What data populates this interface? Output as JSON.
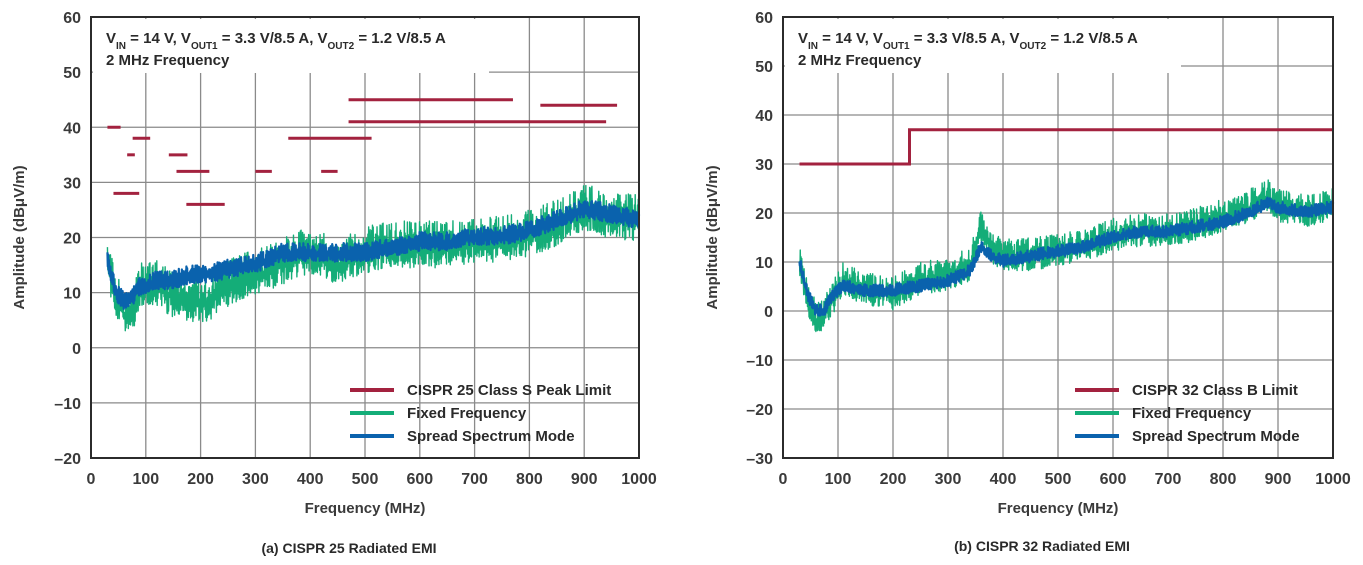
{
  "colors": {
    "limit": "#a3223f",
    "fixed": "#14ad78",
    "spread": "#0a62ad",
    "grid": "#8a8a8a",
    "frame": "#2b2b2b"
  },
  "chart_data": [
    {
      "type": "line",
      "caption": "(a) CISPR 25 Radiated EMI",
      "xlabel": "Frequency (MHz)",
      "ylabel": "Amplitude (dBμV/m)",
      "xlim": [
        0,
        1000
      ],
      "ylim": [
        -20,
        60
      ],
      "xticks": [
        0,
        100,
        200,
        300,
        400,
        500,
        600,
        700,
        800,
        900,
        1000
      ],
      "yticks": [
        -20,
        -10,
        0,
        10,
        20,
        30,
        40,
        50,
        60
      ],
      "grid": true,
      "legend_position": "bottom-right",
      "conditions": {
        "line1": [
          {
            "t": "V",
            "s": ""
          },
          {
            "t": "IN",
            "s": "sub"
          },
          {
            "t": " = 14 V, V",
            "s": ""
          },
          {
            "t": "OUT1",
            "s": "sub"
          },
          {
            "t": " = 3.3 V/8.5 A, V",
            "s": ""
          },
          {
            "t": "OUT2",
            "s": "sub"
          },
          {
            "t": " = 1.2 V/8.5 A",
            "s": ""
          }
        ],
        "line2": "2 MHz Frequency"
      },
      "series": [
        {
          "name": "CISPR 25 Class S Peak Limit",
          "kind": "limit",
          "segments": [
            [
              30,
              40,
              54,
              40
            ],
            [
              41,
              28,
              88,
              28
            ],
            [
              66,
              35,
              80,
              35
            ],
            [
              76,
              38,
              108,
              38
            ],
            [
              142,
              35,
              176,
              35
            ],
            [
              156,
              32,
              216,
              32
            ],
            [
              174,
              26,
              244,
              26
            ],
            [
              300,
              32,
              330,
              32
            ],
            [
              360,
              38,
              512,
              38
            ],
            [
              420,
              32,
              450,
              32
            ],
            [
              470,
              45,
              770,
              45
            ],
            [
              470,
              41,
              940,
              41
            ],
            [
              820,
              44,
              960,
              44
            ]
          ]
        },
        {
          "name": "Fixed Frequency",
          "kind": "noise",
          "base": [
            [
              30,
              15
            ],
            [
              45,
              9
            ],
            [
              60,
              6
            ],
            [
              75,
              6
            ],
            [
              90,
              11
            ],
            [
              120,
              11
            ],
            [
              150,
              9
            ],
            [
              180,
              8
            ],
            [
              210,
              8
            ],
            [
              250,
              11
            ],
            [
              300,
              13
            ],
            [
              350,
              15
            ],
            [
              400,
              17
            ],
            [
              450,
              15
            ],
            [
              500,
              17
            ],
            [
              550,
              18
            ],
            [
              600,
              18
            ],
            [
              650,
              18
            ],
            [
              700,
              19
            ],
            [
              750,
              19
            ],
            [
              800,
              20
            ],
            [
              850,
              22
            ],
            [
              900,
              25
            ],
            [
              950,
              23
            ],
            [
              1000,
              23
            ]
          ],
          "spread": 5
        },
        {
          "name": "Spread Spectrum Mode",
          "kind": "noise",
          "base": [
            [
              30,
              16
            ],
            [
              45,
              10
            ],
            [
              60,
              8
            ],
            [
              75,
              9
            ],
            [
              90,
              11
            ],
            [
              120,
              12
            ],
            [
              150,
              12
            ],
            [
              180,
              13
            ],
            [
              210,
              13
            ],
            [
              250,
              14
            ],
            [
              300,
              15
            ],
            [
              350,
              17
            ],
            [
              400,
              17
            ],
            [
              450,
              17
            ],
            [
              500,
              17
            ],
            [
              550,
              18
            ],
            [
              600,
              19
            ],
            [
              650,
              19
            ],
            [
              700,
              20
            ],
            [
              750,
              20
            ],
            [
              800,
              21
            ],
            [
              850,
              23
            ],
            [
              900,
              25
            ],
            [
              950,
              24
            ],
            [
              1000,
              23
            ]
          ],
          "spread": 2
        }
      ]
    },
    {
      "type": "line",
      "caption": "(b) CISPR 32 Radiated EMI",
      "xlabel": "Frequency (MHz)",
      "ylabel": "Amplitude (dBμV/m)",
      "xlim": [
        0,
        1000
      ],
      "ylim": [
        -30,
        60
      ],
      "xticks": [
        0,
        100,
        200,
        300,
        400,
        500,
        600,
        700,
        800,
        900,
        1000
      ],
      "yticks": [
        -30,
        -20,
        -10,
        0,
        10,
        20,
        30,
        40,
        50,
        60
      ],
      "grid": true,
      "legend_position": "bottom-right",
      "conditions": {
        "line1": [
          {
            "t": "V",
            "s": ""
          },
          {
            "t": "IN",
            "s": "sub"
          },
          {
            "t": " = 14 V, V",
            "s": ""
          },
          {
            "t": "OUT1",
            "s": "sub"
          },
          {
            "t": " = 3.3 V/8.5 A, V",
            "s": ""
          },
          {
            "t": "OUT2",
            "s": "sub"
          },
          {
            "t": " = 1.2 V/8.5 A",
            "s": ""
          }
        ],
        "line2": "2 MHz Frequency"
      },
      "series": [
        {
          "name": "CISPR 32 Class B Limit",
          "kind": "step",
          "points": [
            [
              30,
              30
            ],
            [
              230,
              30
            ],
            [
              230,
              37
            ],
            [
              1000,
              37
            ]
          ]
        },
        {
          "name": "Fixed Frequency",
          "kind": "noise",
          "base": [
            [
              30,
              10
            ],
            [
              45,
              2
            ],
            [
              60,
              -2
            ],
            [
              75,
              -1
            ],
            [
              90,
              2
            ],
            [
              110,
              6
            ],
            [
              150,
              4
            ],
            [
              200,
              3
            ],
            [
              250,
              6
            ],
            [
              300,
              7
            ],
            [
              340,
              9
            ],
            [
              360,
              17
            ],
            [
              380,
              12
            ],
            [
              400,
              11
            ],
            [
              450,
              11
            ],
            [
              500,
              12
            ],
            [
              550,
              13
            ],
            [
              600,
              15
            ],
            [
              650,
              16
            ],
            [
              700,
              16
            ],
            [
              750,
              17
            ],
            [
              800,
              19
            ],
            [
              850,
              21
            ],
            [
              880,
              23
            ],
            [
              900,
              21
            ],
            [
              950,
              20
            ],
            [
              1000,
              21
            ]
          ],
          "spread": 4
        },
        {
          "name": "Spread Spectrum Mode",
          "kind": "noise",
          "base": [
            [
              30,
              10
            ],
            [
              45,
              3
            ],
            [
              60,
              0
            ],
            [
              75,
              0
            ],
            [
              90,
              3
            ],
            [
              110,
              5
            ],
            [
              150,
              4
            ],
            [
              200,
              4
            ],
            [
              250,
              5
            ],
            [
              300,
              6
            ],
            [
              340,
              8
            ],
            [
              360,
              13
            ],
            [
              380,
              11
            ],
            [
              400,
              10
            ],
            [
              450,
              11
            ],
            [
              500,
              12
            ],
            [
              550,
              13
            ],
            [
              600,
              15
            ],
            [
              650,
              16
            ],
            [
              700,
              16
            ],
            [
              750,
              17
            ],
            [
              800,
              18
            ],
            [
              850,
              20
            ],
            [
              880,
              22
            ],
            [
              900,
              21
            ],
            [
              950,
              20
            ],
            [
              1000,
              21
            ]
          ],
          "spread": 1.5
        }
      ]
    }
  ]
}
